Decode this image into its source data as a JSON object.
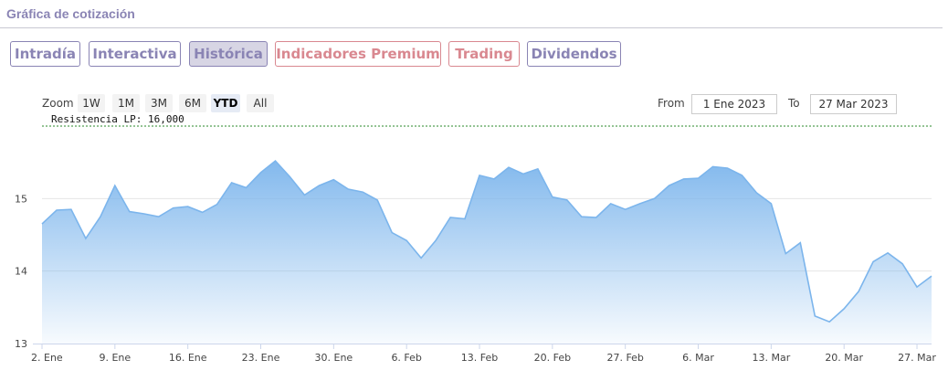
{
  "header": {
    "title": "Gráfica de cotización"
  },
  "tabs": [
    {
      "label": "Intradía",
      "active": false,
      "premium": false
    },
    {
      "label": "Interactiva",
      "active": false,
      "premium": false
    },
    {
      "label": "Histórica",
      "active": true,
      "premium": false
    },
    {
      "label": "Indicadores Premium",
      "active": false,
      "premium": true
    },
    {
      "label": "Trading",
      "active": false,
      "premium": true
    },
    {
      "label": "Dividendos",
      "active": false,
      "premium": false
    }
  ],
  "zoom": {
    "label": "Zoom",
    "options": [
      "1W",
      "1M",
      "3M",
      "6M",
      "YTD",
      "All"
    ],
    "selected": "YTD"
  },
  "range": {
    "from_label": "From",
    "from_value": "1 Ene 2023",
    "to_label": "To",
    "to_value": "27 Mar 2023"
  },
  "colors": {
    "line": "#7cb5ec",
    "fill_top": "#7cb5ec",
    "resistance": "#2a8a2a",
    "tab": "#8a84b4",
    "tab_premium": "#d98890"
  },
  "chart_data": {
    "type": "area",
    "resistance": {
      "label": "Resistencia LP: 16,000",
      "value": 16.0
    },
    "ylim": [
      13,
      16
    ],
    "y_ticks": [
      {
        "label": "13",
        "value": 13
      },
      {
        "label": "14",
        "value": 14
      },
      {
        "label": "15",
        "value": 15
      }
    ],
    "x_ticks": [
      {
        "label": "2. Ene",
        "index": 0
      },
      {
        "label": "9. Ene",
        "index": 5
      },
      {
        "label": "16. Ene",
        "index": 10
      },
      {
        "label": "23. Ene",
        "index": 15
      },
      {
        "label": "30. Ene",
        "index": 20
      },
      {
        "label": "6. Feb",
        "index": 25
      },
      {
        "label": "13. Feb",
        "index": 30
      },
      {
        "label": "20. Feb",
        "index": 35
      },
      {
        "label": "27. Feb",
        "index": 40
      },
      {
        "label": "6. Mar",
        "index": 45
      },
      {
        "label": "13. Mar",
        "index": 50
      },
      {
        "label": "20. Mar",
        "index": 55
      },
      {
        "label": "27. Mar",
        "index": 60
      }
    ],
    "values": [
      14.65,
      14.84,
      14.85,
      14.45,
      14.75,
      15.18,
      14.82,
      14.79,
      14.75,
      14.87,
      14.89,
      14.81,
      14.92,
      15.22,
      15.15,
      15.36,
      15.52,
      15.3,
      15.05,
      15.18,
      15.26,
      15.13,
      15.09,
      14.98,
      14.53,
      14.42,
      14.18,
      14.42,
      14.74,
      14.72,
      15.32,
      15.27,
      15.43,
      15.34,
      15.41,
      15.02,
      14.98,
      14.75,
      14.74,
      14.93,
      14.85,
      14.93,
      15.0,
      15.18,
      15.27,
      15.28,
      15.44,
      15.42,
      15.32,
      15.08,
      14.93,
      14.24,
      14.39,
      13.38,
      13.3,
      13.48,
      13.72,
      14.13,
      14.25,
      14.1,
      13.78,
      13.93
    ]
  }
}
